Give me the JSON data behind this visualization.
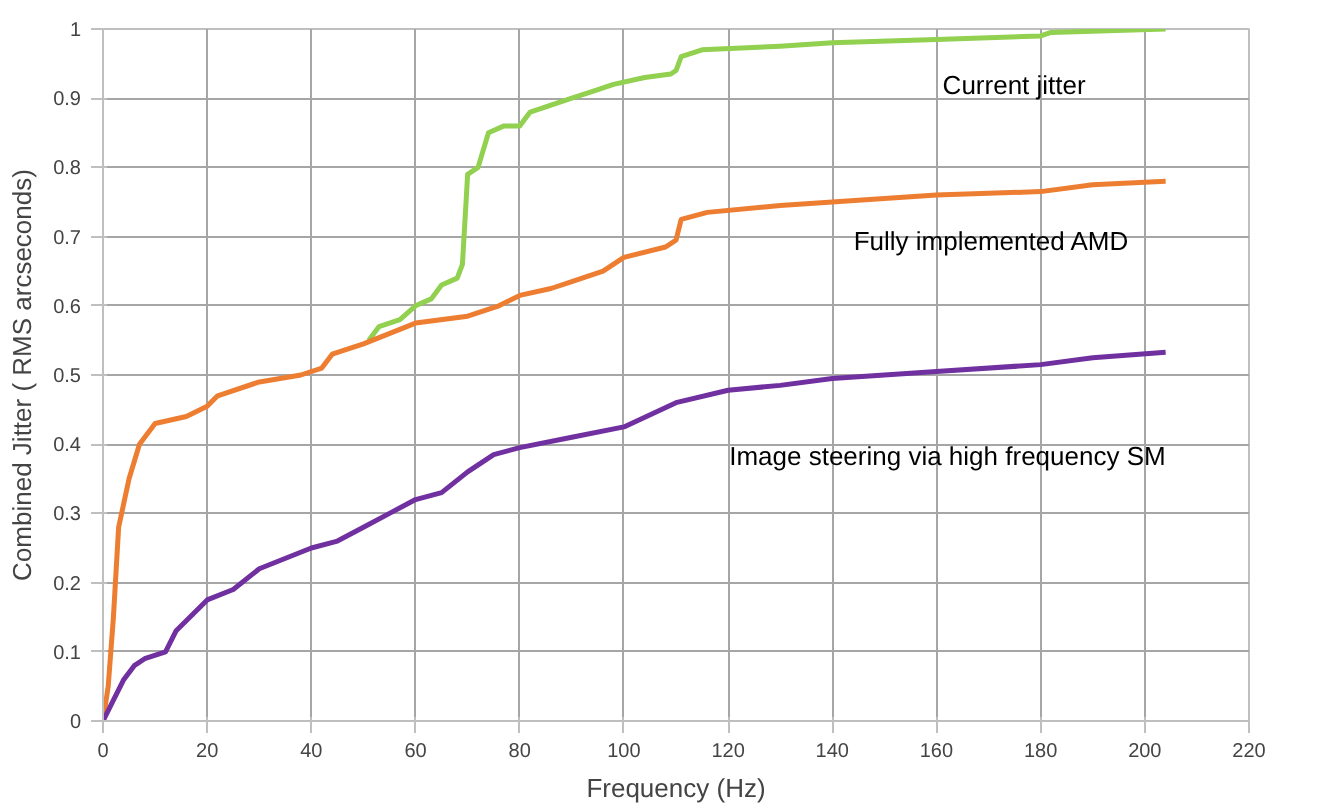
{
  "chart_data": {
    "type": "line",
    "xlabel": "Frequency (Hz)",
    "ylabel": "Combined Jitter ( RMS arcseconds)",
    "xlim": [
      0,
      220
    ],
    "ylim": [
      0,
      1
    ],
    "xticks": [
      0,
      20,
      40,
      60,
      80,
      100,
      120,
      140,
      160,
      180,
      200,
      220
    ],
    "yticks": [
      0,
      0.1,
      0.2,
      0.3,
      0.4,
      0.5,
      0.6,
      0.7,
      0.8,
      0.9,
      1
    ],
    "grid": true,
    "line_style": "solid",
    "series": [
      {
        "name": "Current jitter",
        "color": "#92d050",
        "x": [
          51,
          53,
          57,
          60,
          63,
          65,
          68,
          69,
          70,
          72,
          74,
          77,
          80,
          82,
          86,
          90,
          94,
          98,
          104,
          109,
          110,
          111,
          115,
          130,
          140,
          160,
          180,
          182,
          204
        ],
        "values": [
          0.55,
          0.57,
          0.58,
          0.6,
          0.61,
          0.63,
          0.64,
          0.66,
          0.79,
          0.8,
          0.85,
          0.86,
          0.86,
          0.88,
          0.89,
          0.9,
          0.91,
          0.92,
          0.93,
          0.935,
          0.94,
          0.96,
          0.97,
          0.975,
          0.98,
          0.985,
          0.99,
          0.995,
          1.0
        ]
      },
      {
        "name": "Fully implemented AMD",
        "color": "#ed7d31",
        "x": [
          0,
          1,
          2,
          3,
          5,
          7,
          10,
          16,
          20,
          22,
          30,
          38,
          42,
          44,
          50,
          60,
          70,
          76,
          80,
          86,
          90,
          96,
          100,
          108,
          110,
          111,
          116,
          130,
          140,
          160,
          180,
          190,
          204
        ],
        "values": [
          0,
          0.05,
          0.15,
          0.28,
          0.35,
          0.4,
          0.43,
          0.44,
          0.455,
          0.47,
          0.49,
          0.5,
          0.51,
          0.53,
          0.545,
          0.575,
          0.585,
          0.6,
          0.615,
          0.625,
          0.635,
          0.65,
          0.67,
          0.685,
          0.695,
          0.725,
          0.735,
          0.745,
          0.75,
          0.76,
          0.765,
          0.775,
          0.78
        ]
      },
      {
        "name": "Image steering via high frequency SM",
        "color": "#7030a0",
        "x": [
          0,
          2,
          4,
          6,
          8,
          12,
          14,
          20,
          25,
          30,
          40,
          45,
          50,
          55,
          60,
          65,
          70,
          75,
          80,
          90,
          100,
          110,
          120,
          130,
          140,
          160,
          180,
          190,
          204
        ],
        "values": [
          0,
          0.03,
          0.06,
          0.08,
          0.09,
          0.1,
          0.13,
          0.175,
          0.19,
          0.22,
          0.25,
          0.26,
          0.28,
          0.3,
          0.32,
          0.33,
          0.36,
          0.385,
          0.395,
          0.41,
          0.425,
          0.46,
          0.478,
          0.485,
          0.495,
          0.505,
          0.515,
          0.525,
          0.533
        ]
      }
    ]
  }
}
